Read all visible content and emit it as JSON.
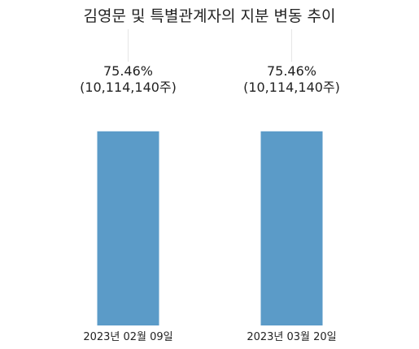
{
  "chart_data": {
    "type": "bar",
    "title": "김영문 및 특별관계자의 지분 변동 추이",
    "categories": [
      "2023년 02월 09일",
      "2023년 03월 20일"
    ],
    "series": [
      {
        "values": [
          75.46,
          75.46
        ],
        "data_labels": [
          "75.46%",
          "75.46%"
        ],
        "share_labels": [
          "(10,114,140주)",
          "(10,114,140주)"
        ]
      }
    ],
    "ylim": [
      0,
      100
    ],
    "grid": false,
    "legend": "none",
    "bar_color": "#5b9bc8",
    "guide_color": "#e6e6e6"
  }
}
